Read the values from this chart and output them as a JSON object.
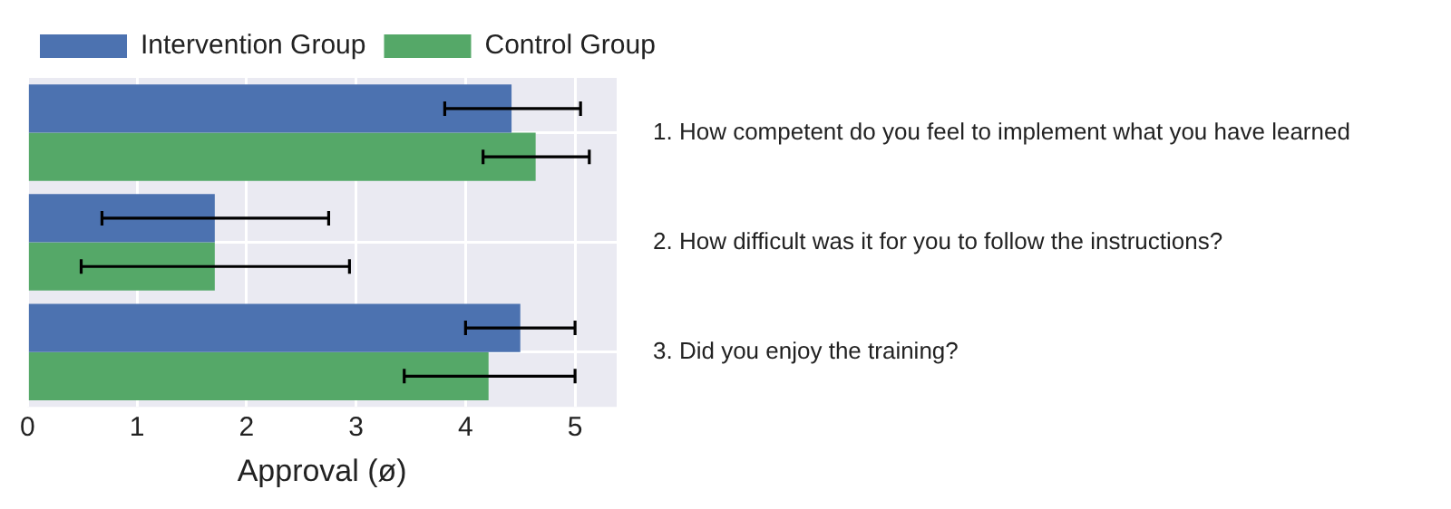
{
  "chart_data": {
    "type": "bar",
    "orientation": "horizontal",
    "xlabel": "Approval (ø)",
    "categories": [
      "1. How competent do you feel to implement what you have learned",
      "2. How difficult was it for you to follow the instructions?",
      "3. Did you enjoy the training?"
    ],
    "series": [
      {
        "name": "Intervention Group",
        "color": "#4c72b0",
        "values": [
          4.42,
          1.71,
          4.5
        ],
        "errors": [
          [
            3.81,
            5.05
          ],
          [
            0.68,
            2.75
          ],
          [
            4.0,
            5.0
          ]
        ]
      },
      {
        "name": "Control Group",
        "color": "#55a868",
        "values": [
          4.64,
          1.71,
          4.21
        ],
        "errors": [
          [
            4.16,
            5.13
          ],
          [
            0.49,
            2.94
          ],
          [
            3.44,
            5.0
          ]
        ]
      }
    ],
    "xlim": [
      0,
      5.38
    ],
    "xticks": [
      0,
      1,
      2,
      3,
      4,
      5
    ],
    "grid": true,
    "legend": "top"
  }
}
